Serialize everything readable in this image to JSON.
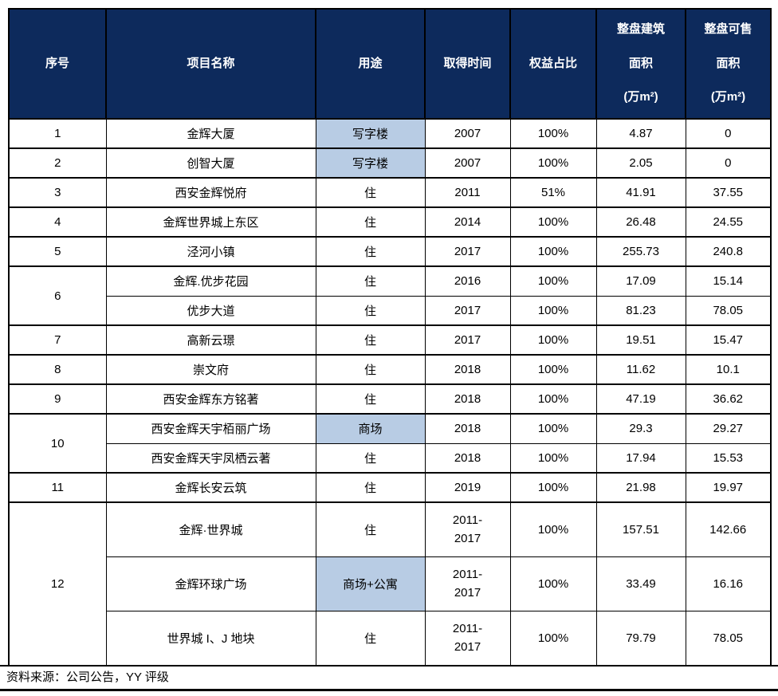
{
  "colors": {
    "header_bg": "#0D2A5C",
    "header_text": "#FFFFFF",
    "highlight_bg": "#B8CCE4",
    "border": "#000000",
    "body_text": "#000000"
  },
  "table": {
    "headers": [
      "序号",
      "项目名称",
      "用途",
      "取得时间",
      "权益占比",
      "整盘建筑\n面积\n(万m²)",
      "整盘可售\n面积\n(万m²)"
    ],
    "groups": [
      {
        "no": "1",
        "projects": [
          {
            "name": "金辉大厦",
            "use": "写字楼",
            "use_highlight": true,
            "acquired": "2007",
            "equity": "100%",
            "gfa": "4.87",
            "sellable": "0"
          }
        ]
      },
      {
        "no": "2",
        "projects": [
          {
            "name": "创智大厦",
            "use": "写字楼",
            "use_highlight": true,
            "acquired": "2007",
            "equity": "100%",
            "gfa": "2.05",
            "sellable": "0"
          }
        ]
      },
      {
        "no": "3",
        "projects": [
          {
            "name": "西安金辉悦府",
            "use": "住",
            "use_highlight": false,
            "acquired": "2011",
            "equity": "51%",
            "gfa": "41.91",
            "sellable": "37.55"
          }
        ]
      },
      {
        "no": "4",
        "projects": [
          {
            "name": "金辉世界城上东区",
            "use": "住",
            "use_highlight": false,
            "acquired": "2014",
            "equity": "100%",
            "gfa": "26.48",
            "sellable": "24.55"
          }
        ]
      },
      {
        "no": "5",
        "projects": [
          {
            "name": "泾河小镇",
            "use": "住",
            "use_highlight": false,
            "acquired": "2017",
            "equity": "100%",
            "gfa": "255.73",
            "sellable": "240.8"
          }
        ]
      },
      {
        "no": "6",
        "projects": [
          {
            "name": "金辉.优步花园",
            "use": "住",
            "use_highlight": false,
            "acquired": "2016",
            "equity": "100%",
            "gfa": "17.09",
            "sellable": "15.14"
          },
          {
            "name": "优步大道",
            "use": "住",
            "use_highlight": false,
            "acquired": "2017",
            "equity": "100%",
            "gfa": "81.23",
            "sellable": "78.05"
          }
        ]
      },
      {
        "no": "7",
        "projects": [
          {
            "name": "高新云璟",
            "use": "住",
            "use_highlight": false,
            "acquired": "2017",
            "equity": "100%",
            "gfa": "19.51",
            "sellable": "15.47"
          }
        ]
      },
      {
        "no": "8",
        "projects": [
          {
            "name": "崇文府",
            "use": "住",
            "use_highlight": false,
            "acquired": "2018",
            "equity": "100%",
            "gfa": "11.62",
            "sellable": "10.1"
          }
        ]
      },
      {
        "no": "9",
        "projects": [
          {
            "name": "西安金辉东方铭著",
            "use": "住",
            "use_highlight": false,
            "acquired": "2018",
            "equity": "100%",
            "gfa": "47.19",
            "sellable": "36.62"
          }
        ]
      },
      {
        "no": "10",
        "projects": [
          {
            "name": "西安金辉天宇栢丽广场",
            "use": "商场",
            "use_highlight": true,
            "acquired": "2018",
            "equity": "100%",
            "gfa": "29.3",
            "sellable": "29.27"
          },
          {
            "name": "西安金辉天宇凤栖云著",
            "use": "住",
            "use_highlight": false,
            "acquired": "2018",
            "equity": "100%",
            "gfa": "17.94",
            "sellable": "15.53"
          }
        ]
      },
      {
        "no": "11",
        "projects": [
          {
            "name": "金辉长安云筑",
            "use": "住",
            "use_highlight": false,
            "acquired": "2019",
            "equity": "100%",
            "gfa": "21.98",
            "sellable": "19.97"
          }
        ]
      },
      {
        "no": "12",
        "projects": [
          {
            "name": "金辉·世界城",
            "use": "住",
            "use_highlight": false,
            "acquired": "2011-\n2017",
            "equity": "100%",
            "gfa": "157.51",
            "sellable": "142.66"
          },
          {
            "name": "金辉环球广场",
            "use": "商场+公寓",
            "use_highlight": true,
            "acquired": "2011-\n2017",
            "equity": "100%",
            "gfa": "33.49",
            "sellable": "16.16"
          },
          {
            "name": "世界城 I、J 地块",
            "use": "住",
            "use_highlight": false,
            "acquired": "2011-\n2017",
            "equity": "100%",
            "gfa": "79.79",
            "sellable": "78.05"
          }
        ]
      }
    ]
  },
  "footer": {
    "source_label": "资料来源：公司公告，YY 评级"
  }
}
